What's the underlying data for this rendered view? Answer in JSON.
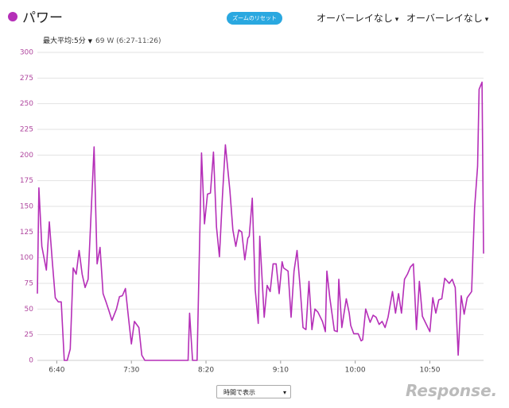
{
  "chart_data": {
    "type": "line",
    "series": [
      {
        "name": "パワー",
        "color": "#b52fb8",
        "values": [
          65,
          168,
          111,
          88,
          135,
          96,
          61,
          57,
          57,
          0,
          0,
          11,
          90,
          84,
          107,
          84,
          71,
          79,
          208,
          94,
          110,
          65,
          57,
          48,
          39,
          50,
          62,
          63,
          70,
          42,
          16,
          38,
          32,
          5,
          0,
          0,
          46,
          0,
          0,
          202,
          133,
          162,
          163,
          203,
          130,
          101,
          160,
          210,
          166,
          127,
          111,
          127,
          125,
          98,
          119,
          121,
          158,
          69,
          36,
          121,
          42,
          73,
          67,
          94,
          94,
          65,
          96,
          90,
          87,
          42,
          87,
          107,
          73,
          32,
          30,
          77,
          30,
          50,
          47,
          38,
          28,
          87,
          61,
          29,
          28,
          79,
          32,
          60,
          46,
          34,
          26,
          26,
          19,
          20,
          50,
          37,
          44,
          42,
          35,
          38,
          32,
          42,
          67,
          46,
          65,
          46,
          79,
          84,
          91,
          94,
          30,
          77,
          43,
          34,
          28,
          61,
          46,
          59,
          60,
          80,
          75,
          79,
          71,
          5,
          63,
          45,
          61,
          67,
          148,
          189,
          264,
          271,
          104
        ]
      }
    ],
    "x": [
      387,
      388,
      390,
      393,
      395,
      397,
      399,
      401,
      403,
      405,
      407,
      409,
      411,
      413,
      415,
      417,
      419,
      421,
      425,
      427,
      429,
      431,
      433,
      435,
      437,
      440,
      442,
      444,
      446,
      448,
      450,
      452,
      455,
      457,
      459,
      488,
      489,
      491,
      494,
      497,
      499,
      501,
      503,
      505,
      507,
      509,
      511,
      513,
      516,
      518,
      520,
      522,
      524,
      526,
      528,
      529,
      531,
      533,
      535,
      536,
      539,
      541,
      543,
      545,
      547,
      549,
      551,
      552,
      555,
      557,
      559,
      561,
      563,
      565,
      567,
      569,
      571,
      573,
      575,
      578,
      580,
      581,
      583,
      586,
      588,
      589,
      591,
      594,
      596,
      597,
      599,
      602,
      604,
      605,
      607,
      610,
      612,
      614,
      616,
      618,
      620,
      622,
      625,
      627,
      629,
      631,
      633,
      635,
      637,
      639,
      641,
      643,
      645,
      648,
      650,
      652,
      654,
      656,
      658,
      660,
      663,
      665,
      667,
      669,
      671,
      673,
      675,
      678,
      680,
      682,
      683,
      685,
      686
    ],
    "xlim": [
      387,
      686
    ],
    "xticks": [
      {
        "value": 400,
        "label": "6:40"
      },
      {
        "value": 450,
        "label": "7:30"
      },
      {
        "value": 500,
        "label": "8:20"
      },
      {
        "value": 550,
        "label": "9:10"
      },
      {
        "value": 600,
        "label": "10:00"
      },
      {
        "value": 650,
        "label": "10:50"
      }
    ],
    "ylim": [
      0,
      300
    ],
    "yticks": [
      0,
      25,
      50,
      75,
      100,
      125,
      150,
      175,
      200,
      225,
      250,
      275,
      300
    ],
    "grid": true
  },
  "ui": {
    "reset_button": "ズームのリセット",
    "overlay_1": "オーバーレイなし",
    "overlay_2": "オーバーレイなし",
    "summary_label": "最大平均:",
    "summary_period": "5分",
    "summary_value": "69 W (6:27-11:26)",
    "view_mode": "時間で表示",
    "watermark": "Response."
  }
}
